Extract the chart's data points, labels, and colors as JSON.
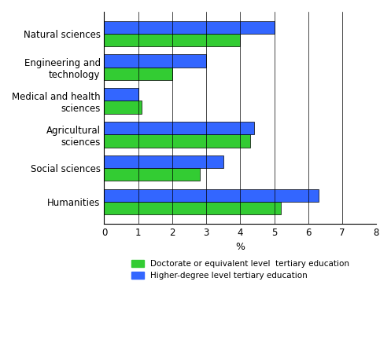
{
  "categories": [
    "Natural sciences",
    "Engineering and\ntechnology",
    "Medical and health\nsciences",
    "Agricultural\nsciences",
    "Social sciences",
    "Humanities"
  ],
  "doctorate_values": [
    4.0,
    2.0,
    1.1,
    4.3,
    2.8,
    5.2
  ],
  "higher_degree_values": [
    5.0,
    3.0,
    1.0,
    4.4,
    3.5,
    6.3
  ],
  "doctorate_color": "#33cc33",
  "higher_degree_color": "#3366ff",
  "xlabel": "%",
  "xlim": [
    0,
    8
  ],
  "xticks": [
    0,
    1,
    2,
    3,
    4,
    5,
    6,
    7,
    8
  ],
  "legend_doctorate": "Doctorate or equivalent level  tertiary education",
  "legend_higher": "Higher-degree level tertiary education",
  "bar_height": 0.38,
  "background_color": "#ffffff",
  "grid_color": "#000000"
}
